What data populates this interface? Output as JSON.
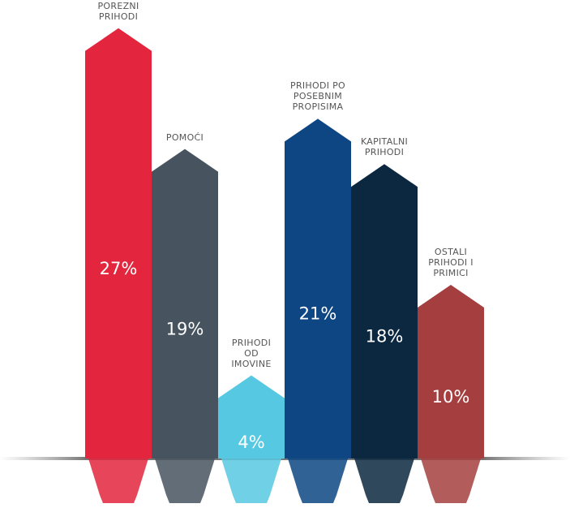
{
  "chart_data": {
    "type": "bar",
    "categories": [
      "POREZNI PRIHODI",
      "POMOĆI",
      "PRIHODI OD IMOVINE",
      "PRIHODI PO POSEBNIM PROPISIMA",
      "KAPITALNI PRIHODI",
      "OSTALI PRIHODI I PRIMICI"
    ],
    "values": [
      27,
      19,
      4,
      21,
      18,
      10
    ],
    "value_labels": [
      "27%",
      "19%",
      "4%",
      "21%",
      "18%",
      "10%"
    ],
    "colors": [
      "#e3263d",
      "#47545f",
      "#56c8e2",
      "#0d4682",
      "#0c2840",
      "#a53f3f"
    ]
  }
}
